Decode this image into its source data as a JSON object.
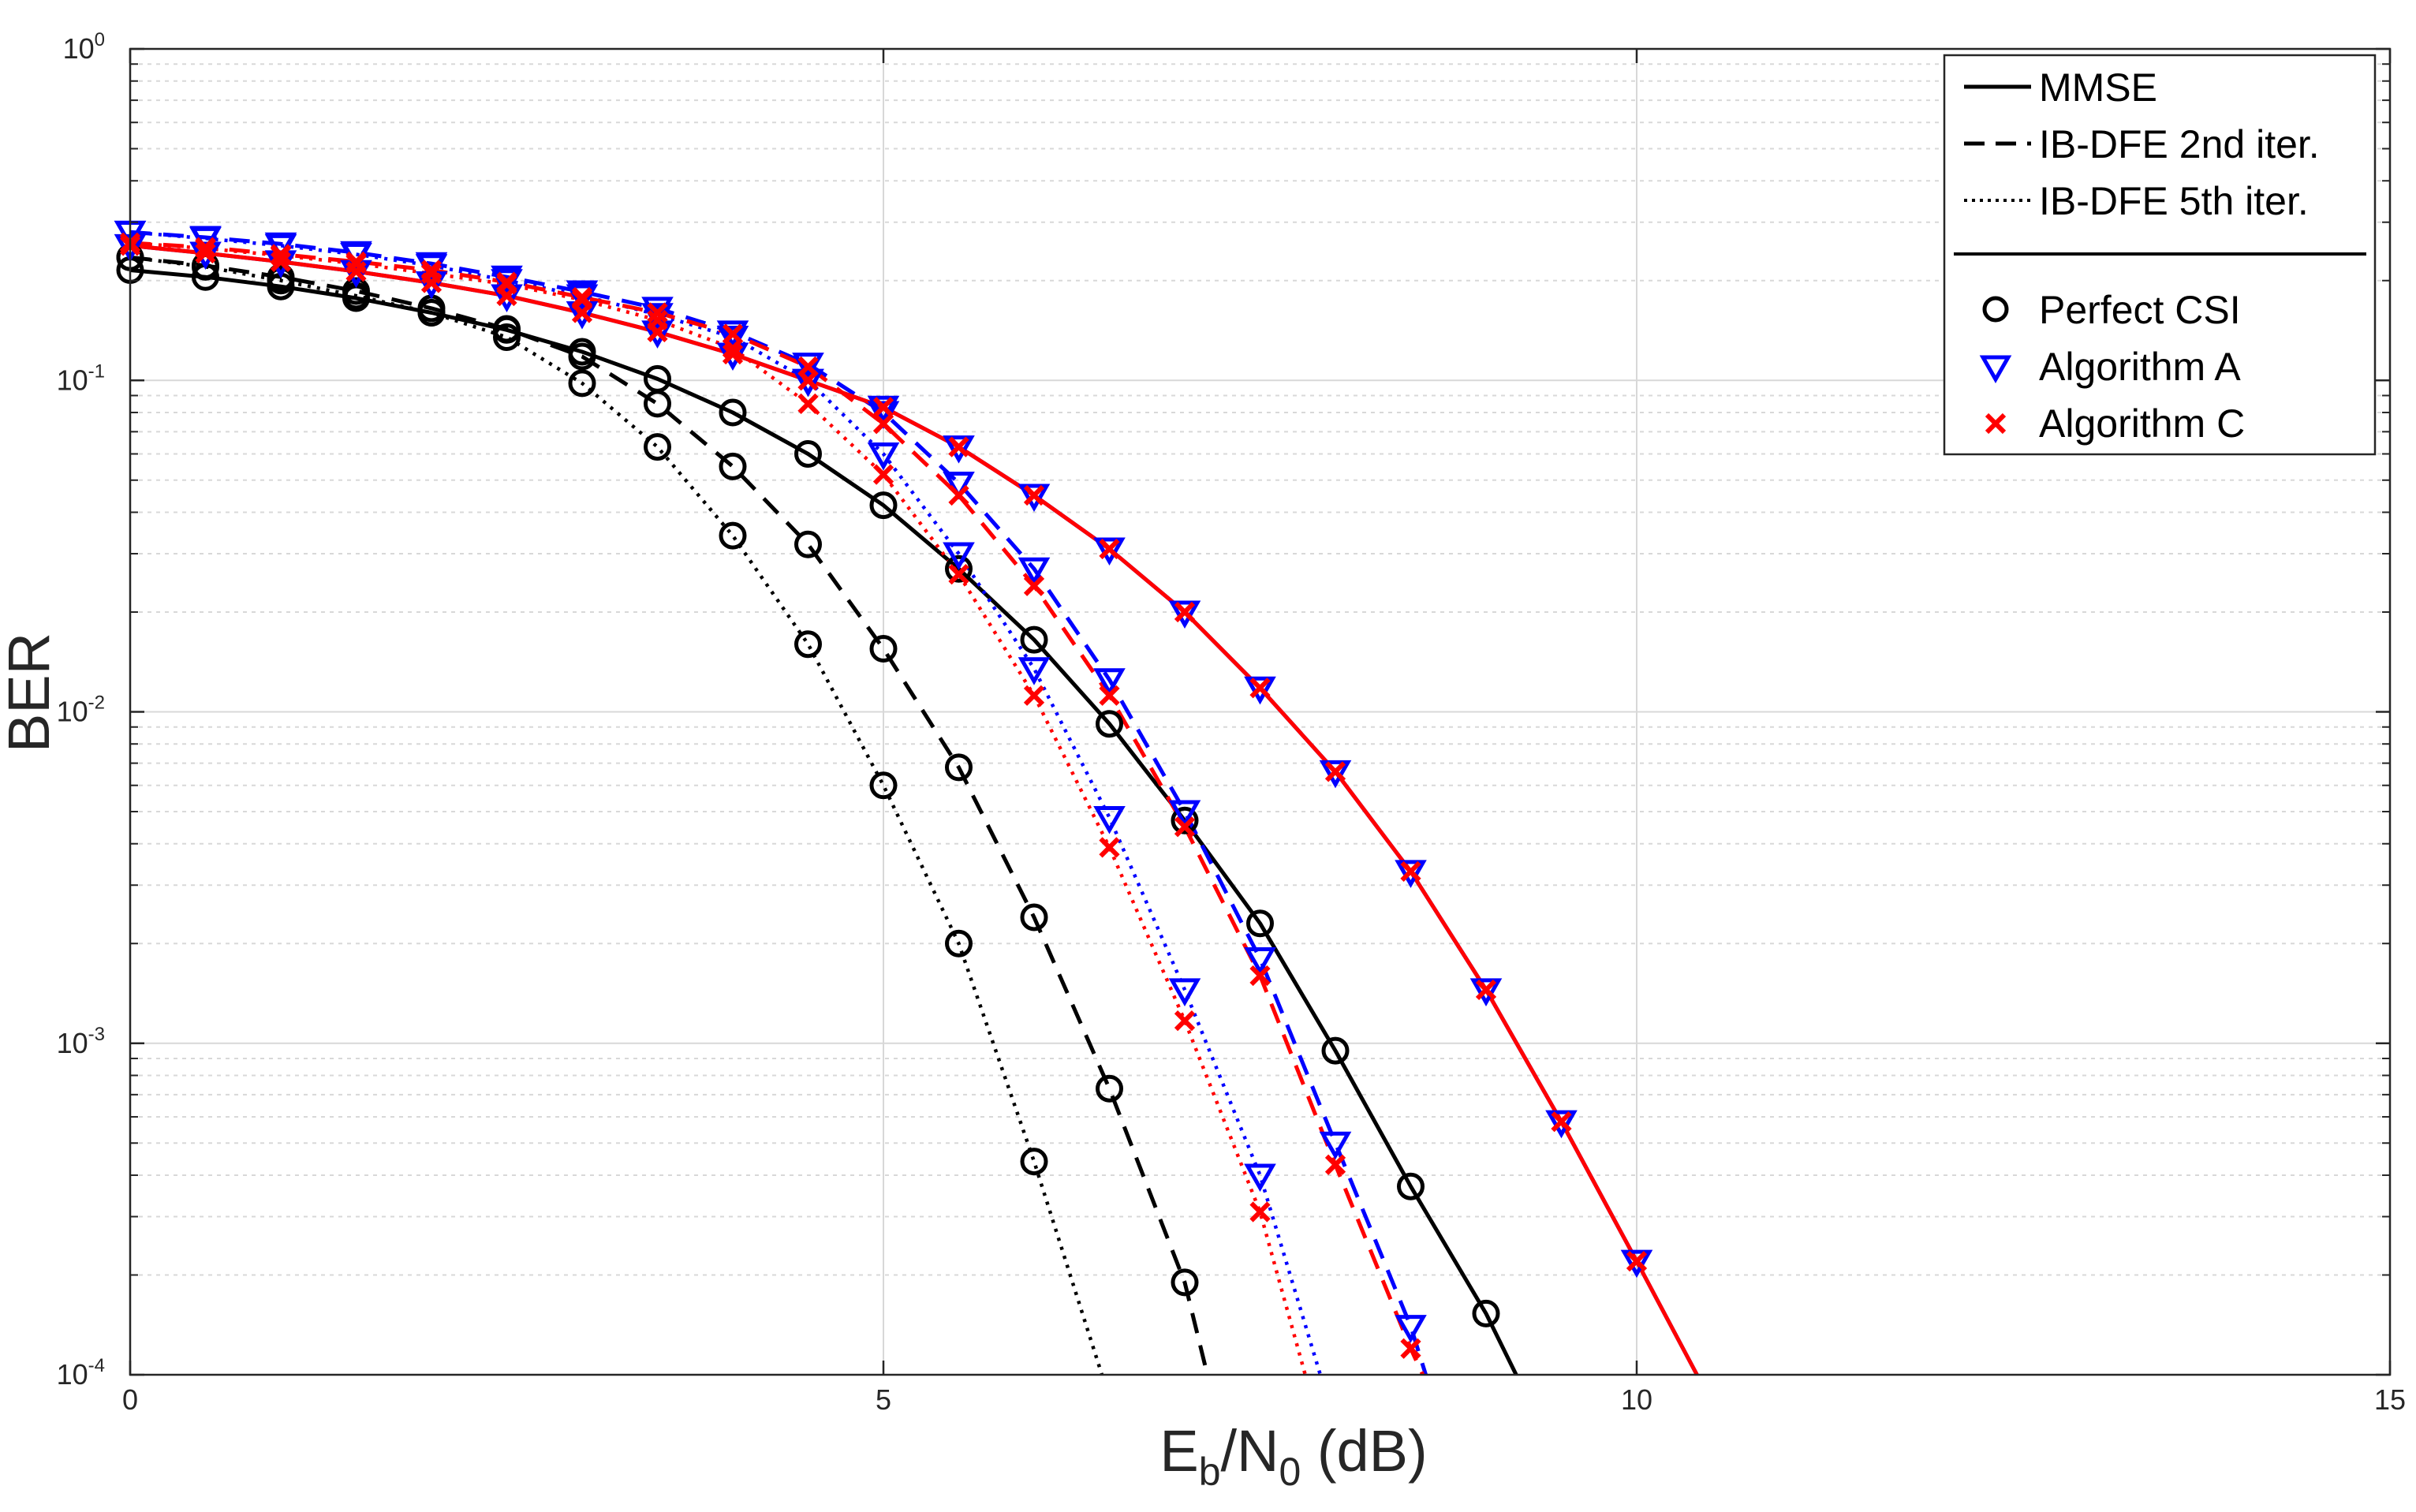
{
  "chart_data": {
    "type": "line",
    "title": "",
    "xlabel": "E_b/N_0 (dB)",
    "xlabel_parts": {
      "main1": "E",
      "sub1": "b",
      "sep": "/N",
      "sub2": "0",
      "unit": " (dB)"
    },
    "ylabel": "BER",
    "xlim": [
      0,
      15
    ],
    "ylim": [
      0.0001,
      1
    ],
    "yscale": "log",
    "grid": true,
    "minor_grid": true,
    "legend_position": "top-right",
    "x_ticks": [
      {
        "value": 0,
        "label": "0"
      },
      {
        "value": 5,
        "label": "5"
      },
      {
        "value": 10,
        "label": "10"
      },
      {
        "value": 15,
        "label": "15"
      }
    ],
    "y_ticks": [
      {
        "value": 1,
        "base": "10",
        "exp": "0"
      },
      {
        "value": 0.1,
        "base": "10",
        "exp": "-1"
      },
      {
        "value": 0.01,
        "base": "10",
        "exp": "-2"
      },
      {
        "value": 0.001,
        "base": "10",
        "exp": "-3"
      },
      {
        "value": 0.0001,
        "base": "10",
        "exp": "-4"
      }
    ],
    "colors": {
      "perfect": "#000000",
      "alg_a": "#0000ff",
      "alg_c": "#ff0000",
      "grid": "#d8d8d8",
      "axis": "#262626"
    },
    "legend": {
      "line_styles": [
        {
          "label": "MMSE",
          "dash": "solid"
        },
        {
          "label": "IB-DFE 2nd iter.",
          "dash": "dashed"
        },
        {
          "label": "IB-DFE 5th iter.",
          "dash": "dotted"
        }
      ],
      "markers": [
        {
          "label": "Perfect CSI",
          "marker": "circle",
          "color": "#000000"
        },
        {
          "label": "Algorithm A",
          "marker": "triangle-down",
          "color": "#0000ff"
        },
        {
          "label": "Algorithm C",
          "marker": "x",
          "color": "#ff0000"
        }
      ]
    },
    "series": [
      {
        "name": "Perfect CSI - MMSE",
        "color": "#000000",
        "dash": "solid",
        "marker": "circle",
        "x": [
          0,
          0.5,
          1,
          1.5,
          2,
          2.5,
          3,
          3.5,
          4,
          4.5,
          5,
          5.5,
          6,
          6.5,
          7,
          7.5,
          8,
          8.5,
          9,
          9.2
        ],
        "y": [
          0.215,
          0.205,
          0.192,
          0.177,
          0.16,
          0.142,
          0.122,
          0.101,
          0.08,
          0.06,
          0.042,
          0.027,
          0.0165,
          0.0092,
          0.0047,
          0.0023,
          0.00095,
          0.00037,
          0.000153,
          0.0001
        ]
      },
      {
        "name": "Perfect CSI - IB-DFE 2nd iter.",
        "color": "#000000",
        "dash": "dashed",
        "marker": "circle",
        "x": [
          0,
          0.5,
          1,
          1.5,
          2,
          2.5,
          3,
          3.5,
          4,
          4.5,
          5,
          5.5,
          6,
          6.5,
          7,
          7.15
        ],
        "y": [
          0.235,
          0.222,
          0.205,
          0.186,
          0.165,
          0.143,
          0.118,
          0.085,
          0.055,
          0.032,
          0.0155,
          0.0068,
          0.0024,
          0.00073,
          0.00019,
          0.0001
        ]
      },
      {
        "name": "Perfect CSI - IB-DFE 5th iter.",
        "color": "#000000",
        "dash": "dotted",
        "marker": "circle",
        "x": [
          0,
          0.5,
          1,
          1.5,
          2,
          2.5,
          3,
          3.5,
          4,
          4.5,
          5,
          5.5,
          6,
          6.45
        ],
        "y": [
          0.235,
          0.22,
          0.2,
          0.18,
          0.16,
          0.135,
          0.098,
          0.063,
          0.034,
          0.016,
          0.006,
          0.002,
          0.00044,
          0.0001
        ]
      },
      {
        "name": "Algorithm A - MMSE",
        "color": "#0000ff",
        "dash": "solid",
        "marker": "triangle-down",
        "x": [
          0,
          0.5,
          1,
          1.5,
          2,
          2.5,
          3,
          3.5,
          4,
          4.5,
          5,
          5.5,
          6,
          6.5,
          7,
          7.5,
          8,
          8.5,
          9,
          9.5,
          10,
          10.4
        ],
        "y": [
          0.255,
          0.242,
          0.228,
          0.213,
          0.197,
          0.18,
          0.16,
          0.14,
          0.12,
          0.1,
          0.083,
          0.063,
          0.045,
          0.031,
          0.02,
          0.0118,
          0.0066,
          0.0033,
          0.00145,
          0.00058,
          0.00022,
          0.0001
        ]
      },
      {
        "name": "Algorithm A - IB-DFE 2nd iter.",
        "color": "#0000ff",
        "dash": "dashed",
        "marker": "triangle-down",
        "x": [
          0,
          0.5,
          1,
          1.5,
          2,
          2.5,
          3,
          3.5,
          4,
          4.5,
          5,
          5.5,
          6,
          6.5,
          7,
          7.5,
          8,
          8.5,
          8.6
        ],
        "y": [
          0.28,
          0.27,
          0.258,
          0.243,
          0.225,
          0.205,
          0.185,
          0.165,
          0.14,
          0.112,
          0.08,
          0.049,
          0.027,
          0.0125,
          0.005,
          0.0018,
          0.0005,
          0.00014,
          0.0001
        ]
      },
      {
        "name": "Algorithm A - IB-DFE 5th iter.",
        "color": "#0000ff",
        "dash": "dotted",
        "marker": "triangle-down",
        "x": [
          0,
          0.5,
          1,
          1.5,
          2,
          2.5,
          3,
          3.5,
          4,
          4.5,
          5,
          5.5,
          6,
          6.5,
          7,
          7.5,
          7.9
        ],
        "y": [
          0.28,
          0.268,
          0.255,
          0.24,
          0.222,
          0.2,
          0.18,
          0.158,
          0.135,
          0.1,
          0.06,
          0.03,
          0.0135,
          0.0048,
          0.00145,
          0.0004,
          0.0001
        ]
      },
      {
        "name": "Algorithm C - MMSE",
        "color": "#ff0000",
        "dash": "solid",
        "marker": "x",
        "x": [
          0,
          0.5,
          1,
          1.5,
          2,
          2.5,
          3,
          3.5,
          4,
          4.5,
          5,
          5.5,
          6,
          6.5,
          7,
          7.5,
          8,
          8.5,
          9,
          9.5,
          10,
          10.4
        ],
        "y": [
          0.255,
          0.242,
          0.228,
          0.213,
          0.197,
          0.18,
          0.16,
          0.14,
          0.12,
          0.1,
          0.083,
          0.063,
          0.045,
          0.031,
          0.02,
          0.0118,
          0.0066,
          0.0033,
          0.00145,
          0.00058,
          0.00022,
          0.0001
        ]
      },
      {
        "name": "Algorithm C - IB-DFE 2nd iter.",
        "color": "#ff0000",
        "dash": "dashed",
        "marker": "x",
        "x": [
          0,
          0.5,
          1,
          1.5,
          2,
          2.5,
          3,
          3.5,
          4,
          4.5,
          5,
          5.5,
          6,
          6.5,
          7,
          7.5,
          8,
          8.5,
          8.58
        ],
        "y": [
          0.26,
          0.252,
          0.24,
          0.228,
          0.215,
          0.198,
          0.178,
          0.16,
          0.138,
          0.11,
          0.074,
          0.045,
          0.024,
          0.0112,
          0.0045,
          0.0016,
          0.00043,
          0.00012,
          0.0001
        ]
      },
      {
        "name": "Algorithm C - IB-DFE 5th iter.",
        "color": "#ff0000",
        "dash": "dotted",
        "marker": "x",
        "x": [
          0,
          0.5,
          1,
          1.5,
          2,
          2.5,
          3,
          3.5,
          4,
          4.5,
          5,
          5.5,
          6,
          6.5,
          7,
          7.5,
          7.8
        ],
        "y": [
          0.26,
          0.25,
          0.238,
          0.225,
          0.21,
          0.195,
          0.175,
          0.152,
          0.125,
          0.085,
          0.052,
          0.026,
          0.0112,
          0.0039,
          0.00117,
          0.00031,
          0.0001
        ]
      }
    ]
  }
}
